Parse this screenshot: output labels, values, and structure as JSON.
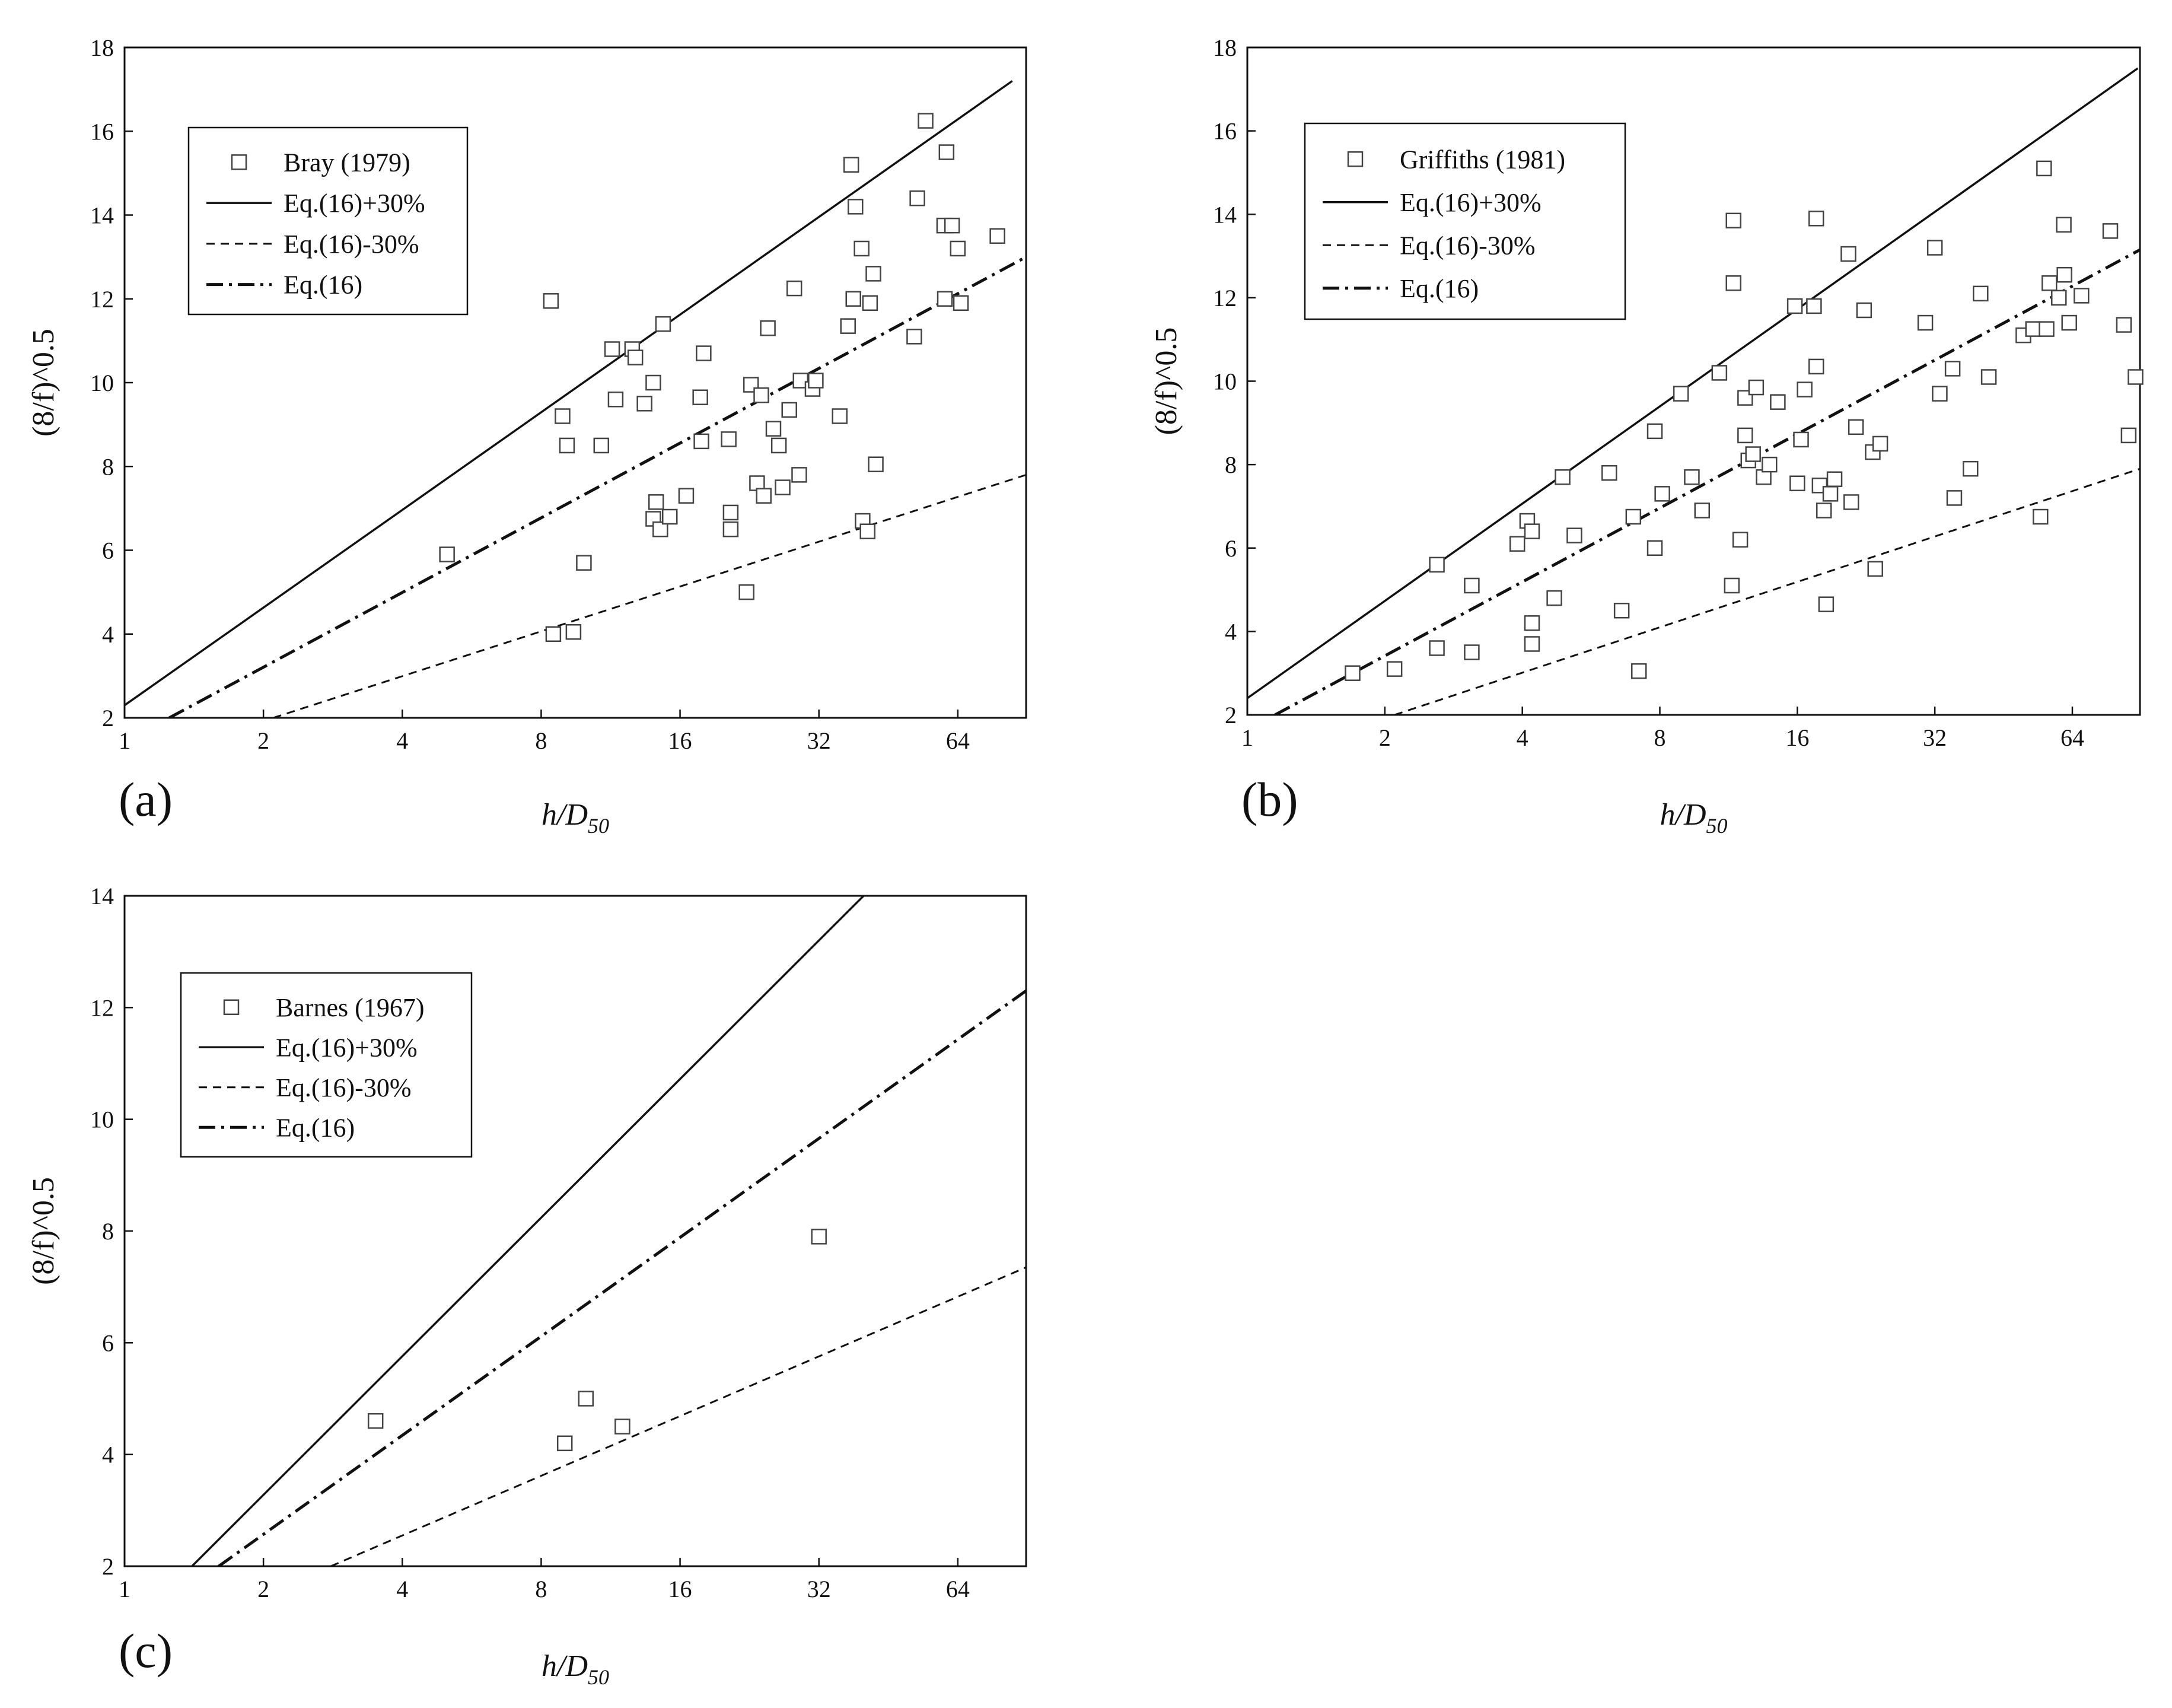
{
  "chart_data": [
    {
      "panel": "(a)",
      "type": "scatter",
      "xlabel_main": "h/D",
      "xlabel_sub": "50",
      "ylabel": "(8/f)^0.5",
      "x_scale": "log2",
      "xlim": [
        1,
        90
      ],
      "ylim": [
        2,
        18
      ],
      "x_ticks": [
        "1",
        "2",
        "4",
        "8",
        "16",
        "32",
        "64"
      ],
      "y_ticks": [
        "2",
        "4",
        "6",
        "8",
        "10",
        "12",
        "14",
        "16",
        "18"
      ],
      "legend": {
        "placement": "top-left",
        "entries": [
          "Bray (1979)",
          "Eq.(16)+30%",
          "Eq.(16)-30%",
          "Eq.(16)"
        ]
      },
      "lines": [
        {
          "name": "Eq.(16)+30%",
          "style": "solid",
          "points": [
            [
              1,
              2.3
            ],
            [
              84,
              17.2
            ]
          ]
        },
        {
          "name": "Eq.(16)-30%",
          "style": "dashed",
          "points": [
            [
              2.1,
              2.0
            ],
            [
              90,
              7.8
            ]
          ]
        },
        {
          "name": "Eq.(16)",
          "style": "dashdot",
          "points": [
            [
              1.25,
              2.0
            ],
            [
              90,
              13.0
            ]
          ]
        }
      ],
      "series": [
        {
          "name": "Bray (1979)",
          "marker": "open-square",
          "points": [
            [
              5.0,
              5.9
            ],
            [
              8.4,
              11.95
            ],
            [
              8.5,
              4.0
            ],
            [
              8.9,
              9.2
            ],
            [
              9.1,
              8.5
            ],
            [
              9.4,
              4.05
            ],
            [
              9.9,
              5.7
            ],
            [
              10.8,
              8.5
            ],
            [
              11.4,
              10.8
            ],
            [
              11.6,
              9.6
            ],
            [
              12.6,
              10.8
            ],
            [
              12.8,
              10.6
            ],
            [
              13.4,
              9.5
            ],
            [
              14.0,
              10.0
            ],
            [
              14.0,
              6.75
            ],
            [
              14.2,
              7.15
            ],
            [
              14.5,
              6.5
            ],
            [
              14.7,
              11.4
            ],
            [
              15.2,
              6.8
            ],
            [
              16.5,
              7.3
            ],
            [
              17.7,
              9.65
            ],
            [
              17.8,
              8.6
            ],
            [
              18.0,
              10.7
            ],
            [
              20.4,
              8.65
            ],
            [
              20.6,
              6.9
            ],
            [
              20.6,
              6.5
            ],
            [
              22.3,
              5.0
            ],
            [
              22.8,
              9.95
            ],
            [
              23.5,
              7.6
            ],
            [
              24.0,
              9.7
            ],
            [
              24.3,
              7.3
            ],
            [
              24.8,
              11.3
            ],
            [
              25.5,
              8.9
            ],
            [
              26.2,
              8.5
            ],
            [
              26.7,
              7.5
            ],
            [
              27.6,
              9.35
            ],
            [
              28.3,
              12.25
            ],
            [
              29.0,
              7.8
            ],
            [
              29.2,
              10.05
            ],
            [
              31.0,
              9.85
            ],
            [
              31.5,
              10.05
            ],
            [
              35.5,
              9.2
            ],
            [
              37.0,
              11.35
            ],
            [
              37.6,
              15.2
            ],
            [
              38.0,
              12.0
            ],
            [
              38.4,
              14.2
            ],
            [
              39.6,
              13.2
            ],
            [
              39.8,
              6.7
            ],
            [
              40.8,
              6.45
            ],
            [
              41.3,
              11.9
            ],
            [
              42.0,
              12.6
            ],
            [
              42.5,
              8.05
            ],
            [
              51.5,
              11.1
            ],
            [
              52.3,
              14.4
            ],
            [
              54.5,
              16.25
            ],
            [
              59.8,
              13.75
            ],
            [
              60.0,
              12.0
            ],
            [
              60.5,
              15.5
            ],
            [
              62.2,
              13.75
            ],
            [
              64.0,
              13.2
            ],
            [
              65.0,
              11.9
            ],
            [
              78.0,
              13.5
            ]
          ]
        }
      ]
    },
    {
      "panel": "(b)",
      "type": "scatter",
      "xlabel_main": "h/D",
      "xlabel_sub": "50",
      "ylabel": "(8/f)^0.5",
      "x_scale": "log2",
      "xlim": [
        1,
        90
      ],
      "ylim": [
        2,
        18
      ],
      "x_ticks": [
        "1",
        "2",
        "4",
        "8",
        "16",
        "32",
        "64"
      ],
      "y_ticks": [
        "2",
        "4",
        "6",
        "8",
        "10",
        "12",
        "14",
        "16",
        "18"
      ],
      "legend": {
        "placement": "top-left",
        "entries": [
          "Griffiths (1981)",
          "Eq.(16)+30%",
          "Eq.(16)-30%",
          "Eq.(16)"
        ]
      },
      "lines": [
        {
          "name": "Eq.(16)+30%",
          "style": "solid",
          "points": [
            [
              1,
              2.4
            ],
            [
              89,
              17.5
            ]
          ]
        },
        {
          "name": "Eq.(16)-30%",
          "style": "dashed",
          "points": [
            [
              2.1,
              2.0
            ],
            [
              90,
              7.9
            ]
          ]
        },
        {
          "name": "Eq.(16)",
          "style": "dashdot",
          "points": [
            [
              1.15,
              2.0
            ],
            [
              90,
              13.15
            ]
          ]
        }
      ],
      "series": [
        {
          "name": "Griffiths (1981)",
          "marker": "open-square",
          "points": [
            [
              1.7,
              3.0
            ],
            [
              2.1,
              3.1
            ],
            [
              2.6,
              5.6
            ],
            [
              2.6,
              3.6
            ],
            [
              3.1,
              5.1
            ],
            [
              3.1,
              3.5
            ],
            [
              3.9,
              6.1
            ],
            [
              4.1,
              6.65
            ],
            [
              4.2,
              6.4
            ],
            [
              4.2,
              4.2
            ],
            [
              4.2,
              3.7
            ],
            [
              4.7,
              4.8
            ],
            [
              4.9,
              7.7
            ],
            [
              5.2,
              6.3
            ],
            [
              6.2,
              7.8
            ],
            [
              6.6,
              4.5
            ],
            [
              7.0,
              6.75
            ],
            [
              7.2,
              3.05
            ],
            [
              7.8,
              8.8
            ],
            [
              7.8,
              6.0
            ],
            [
              8.1,
              7.3
            ],
            [
              8.9,
              9.7
            ],
            [
              9.4,
              7.7
            ],
            [
              9.9,
              6.9
            ],
            [
              10.8,
              10.2
            ],
            [
              11.5,
              5.1
            ],
            [
              11.6,
              13.85
            ],
            [
              11.6,
              12.35
            ],
            [
              12.0,
              6.2
            ],
            [
              12.3,
              9.6
            ],
            [
              12.3,
              8.7
            ],
            [
              12.5,
              8.1
            ],
            [
              12.8,
              8.25
            ],
            [
              13.0,
              9.85
            ],
            [
              13.5,
              7.7
            ],
            [
              13.9,
              8.0
            ],
            [
              14.5,
              9.5
            ],
            [
              15.8,
              11.8
            ],
            [
              16.0,
              7.55
            ],
            [
              16.3,
              8.6
            ],
            [
              16.6,
              9.8
            ],
            [
              17.4,
              11.8
            ],
            [
              17.6,
              13.9
            ],
            [
              17.6,
              10.35
            ],
            [
              17.9,
              7.5
            ],
            [
              18.3,
              6.9
            ],
            [
              18.5,
              4.65
            ],
            [
              18.9,
              7.3
            ],
            [
              19.3,
              7.65
            ],
            [
              20.7,
              13.05
            ],
            [
              21.0,
              7.1
            ],
            [
              21.5,
              8.9
            ],
            [
              22.4,
              11.7
            ],
            [
              23.4,
              8.3
            ],
            [
              23.7,
              5.5
            ],
            [
              24.3,
              8.5
            ],
            [
              30.5,
              11.4
            ],
            [
              32.0,
              13.2
            ],
            [
              32.8,
              9.7
            ],
            [
              35.0,
              10.3
            ],
            [
              35.3,
              7.2
            ],
            [
              38.3,
              7.9
            ],
            [
              40.3,
              12.1
            ],
            [
              42.0,
              10.1
            ],
            [
              50.0,
              11.1
            ],
            [
              52.5,
              11.25
            ],
            [
              54.5,
              6.75
            ],
            [
              55.5,
              15.1
            ],
            [
              56.2,
              11.25
            ],
            [
              57.0,
              12.35
            ],
            [
              59.8,
              12.0
            ],
            [
              61.3,
              13.75
            ],
            [
              61.5,
              12.55
            ],
            [
              63.0,
              11.4
            ],
            [
              67.0,
              12.05
            ],
            [
              77.5,
              13.6
            ],
            [
              83.0,
              11.35
            ],
            [
              85.0,
              8.7
            ],
            [
              88.0,
              10.1
            ]
          ]
        }
      ]
    },
    {
      "panel": "(c)",
      "type": "scatter",
      "xlabel_main": "h/D",
      "xlabel_sub": "50",
      "ylabel": "(8/f)^0.5",
      "x_scale": "log2",
      "xlim": [
        1,
        90
      ],
      "ylim": [
        2,
        14
      ],
      "x_ticks": [
        "1",
        "2",
        "4",
        "8",
        "16",
        "32",
        "64"
      ],
      "y_ticks": [
        "2",
        "4",
        "6",
        "8",
        "10",
        "12",
        "14"
      ],
      "legend": {
        "placement": "top-left",
        "entries": [
          "Barnes (1967)",
          "Eq.(16)+30%",
          "Eq.(16)-30%",
          "Eq.(16)"
        ]
      },
      "lines": [
        {
          "name": "Eq.(16)+30%",
          "style": "solid",
          "points": [
            [
              1.4,
              2.0
            ],
            [
              40.0,
              14.0
            ]
          ]
        },
        {
          "name": "Eq.(16)-30%",
          "style": "dashed",
          "points": [
            [
              2.8,
              2.0
            ],
            [
              90,
              7.35
            ]
          ]
        },
        {
          "name": "Eq.(16)",
          "style": "dashdot",
          "points": [
            [
              1.6,
              2.0
            ],
            [
              90,
              12.3
            ]
          ]
        }
      ],
      "series": [
        {
          "name": "Barnes (1967)",
          "marker": "open-square",
          "points": [
            [
              3.5,
              4.6
            ],
            [
              9.0,
              4.2
            ],
            [
              10.0,
              5.0
            ],
            [
              12.0,
              4.5
            ],
            [
              32.0,
              7.9
            ]
          ]
        }
      ]
    }
  ]
}
